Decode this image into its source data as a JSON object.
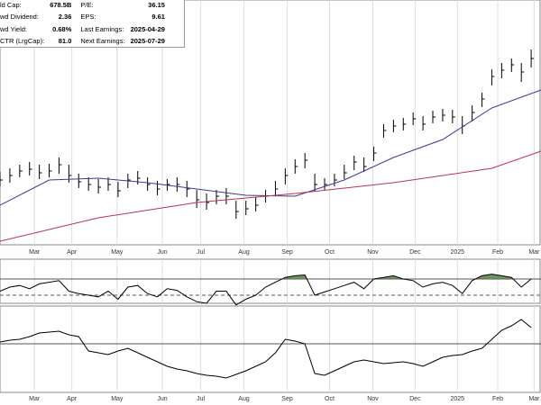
{
  "header": {
    "left": [
      {
        "label": "ld Cap:",
        "value": "678.5B"
      },
      {
        "label": "wd Dividend:",
        "value": "2.36"
      },
      {
        "label": "wd Yield:",
        "value": "0.68%"
      },
      {
        "label": "CTR (LrgCap):",
        "value": "81.0"
      }
    ],
    "right": [
      {
        "label": "P/E:",
        "value": "36.15"
      },
      {
        "label": "EPS:",
        "value": "9.61"
      },
      {
        "label": "Last Earnings:",
        "value": "2025-04-29"
      },
      {
        "label": "Next Earnings:",
        "value": "2025-07-29"
      }
    ]
  },
  "chart_data": [
    {
      "type": "ohlc",
      "xlim": [
        0,
        55
      ],
      "ylim": [
        0,
        275
      ],
      "xticks": [
        {
          "value": 3.5,
          "label": "Mar"
        },
        {
          "value": 7.3,
          "label": "Apr"
        },
        {
          "value": 11.9,
          "label": "May"
        },
        {
          "value": 16.5,
          "label": "Jun"
        },
        {
          "value": 20.4,
          "label": "Jul"
        },
        {
          "value": 24.8,
          "label": "Aug"
        },
        {
          "value": 29.2,
          "label": "Sep"
        },
        {
          "value": 33.5,
          "label": "Oct"
        },
        {
          "value": 37.9,
          "label": "Nov"
        },
        {
          "value": 42.2,
          "label": "Dec"
        },
        {
          "value": 46.5,
          "label": "2025"
        },
        {
          "value": 50.6,
          "label": "Feb"
        },
        {
          "value": 54.3,
          "label": "Mar"
        }
      ],
      "x": [
        0,
        1,
        2,
        3,
        4,
        5,
        6,
        7,
        8,
        9,
        10,
        11,
        12,
        13,
        14,
        15,
        16,
        17,
        18,
        19,
        20,
        21,
        22,
        23,
        24,
        25,
        26,
        27,
        28,
        29,
        30,
        31,
        32,
        33,
        34,
        35,
        36,
        37,
        38,
        39,
        40,
        41,
        42,
        43,
        44,
        45,
        46,
        47,
        48,
        49,
        50,
        51,
        52,
        53,
        54
      ],
      "price": {
        "color": "#000000",
        "values": [
          75,
          80,
          85,
          87,
          83,
          85,
          92,
          80,
          73,
          70,
          67,
          70,
          63,
          75,
          77,
          70,
          65,
          70,
          70,
          65,
          53,
          50,
          57,
          57,
          40,
          43,
          47,
          57,
          65,
          80,
          90,
          97,
          70,
          70,
          75,
          83,
          95,
          90,
          105,
          130,
          135,
          137,
          143,
          137,
          145,
          147,
          145,
          135,
          150,
          165,
          190,
          197,
          203,
          195,
          210
        ],
        "high": [
          84,
          88,
          92,
          95,
          92,
          93,
          100,
          92,
          82,
          78,
          76,
          78,
          73,
          82,
          85,
          78,
          74,
          76,
          78,
          74,
          64,
          60,
          64,
          66,
          52,
          52,
          56,
          64,
          74,
          88,
          98,
          105,
          82,
          77,
          82,
          92,
          102,
          100,
          112,
          137,
          142,
          144,
          150,
          146,
          152,
          154,
          153,
          146,
          158,
          172,
          198,
          205,
          210,
          205,
          220
        ],
        "low": [
          68,
          72,
          78,
          80,
          76,
          78,
          82,
          72,
          66,
          63,
          60,
          63,
          56,
          66,
          70,
          63,
          58,
          63,
          62,
          56,
          44,
          42,
          48,
          48,
          32,
          36,
          40,
          50,
          58,
          70,
          82,
          88,
          62,
          64,
          68,
          76,
          86,
          84,
          96,
          122,
          128,
          130,
          136,
          130,
          138,
          140,
          138,
          126,
          140,
          156,
          180,
          188,
          195,
          184,
          200
        ]
      },
      "series": [
        {
          "color": "#3a3a9a",
          "x": [
            0,
            5,
            10,
            15,
            20,
            25,
            30,
            35,
            40,
            45,
            50,
            55
          ],
          "values": [
            47,
            75,
            77,
            72,
            65,
            58,
            57,
            75,
            100,
            120,
            155,
            175
          ]
        },
        {
          "color": "#c0304a",
          "x": [
            0,
            10,
            20,
            30,
            40,
            50,
            55
          ],
          "values": [
            7,
            33,
            50,
            60,
            72,
            88,
            107
          ]
        }
      ]
    },
    {
      "type": "line",
      "xlim": [
        0,
        55
      ],
      "ylim": [
        40,
        100
      ],
      "levels": [
        70,
        50
      ],
      "fill_color": "#4a7a3a",
      "color": "#000000",
      "values": [
        55,
        60,
        62,
        58,
        64,
        66,
        68,
        55,
        52,
        50,
        48,
        55,
        45,
        60,
        62,
        52,
        48,
        58,
        56,
        48,
        42,
        40,
        55,
        55,
        38,
        45,
        50,
        60,
        66,
        72,
        74,
        75,
        50,
        54,
        58,
        62,
        66,
        58,
        70,
        72,
        74,
        70,
        68,
        60,
        64,
        66,
        62,
        52,
        68,
        74,
        76,
        74,
        72,
        60,
        70
      ]
    },
    {
      "type": "line",
      "xlim": [
        0,
        55
      ],
      "ylim": [
        -53,
        37
      ],
      "levels": [
        0
      ],
      "color": "#000000",
      "xticks": [
        {
          "value": 3.5,
          "label": "Mar"
        },
        {
          "value": 7.3,
          "label": "Apr"
        },
        {
          "value": 11.9,
          "label": "May"
        },
        {
          "value": 16.5,
          "label": "Jun"
        },
        {
          "value": 20.4,
          "label": "Jul"
        },
        {
          "value": 24.8,
          "label": "Aug"
        },
        {
          "value": 29.2,
          "label": "Sep"
        },
        {
          "value": 33.5,
          "label": "Oct"
        },
        {
          "value": 37.9,
          "label": "Nov"
        },
        {
          "value": 42.2,
          "label": "Dec"
        },
        {
          "value": 46.5,
          "label": "2025"
        },
        {
          "value": 50.6,
          "label": "Feb"
        },
        {
          "value": 54.3,
          "label": "Mar"
        }
      ],
      "values": [
        2,
        4,
        5,
        8,
        12,
        13,
        14,
        10,
        8,
        -8,
        -10,
        -12,
        -8,
        -5,
        -10,
        -15,
        -20,
        -25,
        -28,
        -30,
        -33,
        -35,
        -36,
        -38,
        -34,
        -30,
        -25,
        -20,
        -10,
        5,
        3,
        0,
        -33,
        -35,
        -30,
        -25,
        -20,
        -18,
        -20,
        -22,
        -21,
        -20,
        -22,
        -25,
        -20,
        -15,
        -13,
        -12,
        -8,
        -5,
        5,
        15,
        20,
        27,
        18
      ]
    }
  ]
}
